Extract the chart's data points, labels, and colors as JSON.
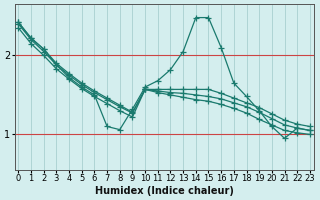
{
  "xlabel": "Humidex (Indice chaleur)",
  "ylabel": "",
  "bg_color": "#d4eeee",
  "grid_color": "#aed4d4",
  "line_color": "#1a7a6e",
  "red_line_color": "#cc4444",
  "x_ticks": [
    0,
    1,
    2,
    3,
    4,
    5,
    6,
    7,
    8,
    9,
    10,
    11,
    12,
    13,
    14,
    15,
    16,
    17,
    18,
    19,
    20,
    21,
    22,
    23
  ],
  "y_ticks": [
    1,
    2
  ],
  "xlim": [
    -0.3,
    23.3
  ],
  "ylim": [
    0.55,
    2.65
  ],
  "zigzag": [
    2.42,
    2.22,
    2.08,
    1.88,
    1.72,
    1.6,
    1.5,
    1.1,
    1.06,
    1.32,
    1.6,
    1.68,
    1.82,
    2.05,
    2.48,
    2.48,
    2.1,
    1.65,
    1.48,
    1.3,
    1.1,
    0.95,
    1.08,
    1.05
  ],
  "line1": [
    2.4,
    2.2,
    2.05,
    1.88,
    1.75,
    1.63,
    1.53,
    1.44,
    1.35,
    1.27,
    1.57,
    1.55,
    1.53,
    1.52,
    1.5,
    1.48,
    1.45,
    1.4,
    1.35,
    1.28,
    1.2,
    1.12,
    1.08,
    1.05
  ],
  "line2": [
    2.42,
    2.22,
    2.08,
    1.9,
    1.77,
    1.65,
    1.55,
    1.46,
    1.37,
    1.28,
    1.57,
    1.53,
    1.5,
    1.47,
    1.44,
    1.42,
    1.38,
    1.33,
    1.27,
    1.19,
    1.12,
    1.05,
    1.02,
    1.0
  ],
  "line3": [
    2.35,
    2.15,
    2.0,
    1.83,
    1.7,
    1.58,
    1.48,
    1.39,
    1.3,
    1.22,
    1.57,
    1.57,
    1.57,
    1.57,
    1.57,
    1.57,
    1.52,
    1.46,
    1.4,
    1.34,
    1.26,
    1.18,
    1.13,
    1.1
  ],
  "marker": "+",
  "markersize": 4,
  "lw": 0.9
}
